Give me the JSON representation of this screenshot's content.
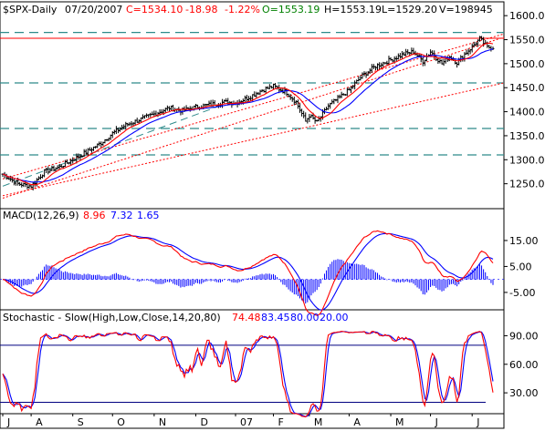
{
  "header": {
    "symbol": "$SPX-Daily",
    "date": "07/20/2007",
    "close": "C=1534.10",
    "change": "-18.98",
    "change_pct": "-1.22%",
    "open": "O=1553.19",
    "high": "H=1553.19",
    "low": "L=1529.20",
    "volume": "V=198945"
  },
  "colors": {
    "background": "#ffffff",
    "frame": "#000000",
    "price_bars": "#000000",
    "red": "#ff0000",
    "blue": "#0000ff",
    "green": "#008000",
    "teal_dashed": "#2e8b8b"
  },
  "chart_data": [
    {
      "type": "line",
      "name": "price",
      "ylim": [
        1200,
        1625
      ],
      "y_ticks": [
        "1600.00",
        "1550.00",
        "1500.00",
        "1450.00",
        "1400.00",
        "1350.00",
        "1300.00",
        "1250.00"
      ],
      "y_tick_values": [
        1600,
        1550,
        1500,
        1450,
        1400,
        1350,
        1300,
        1250
      ],
      "horizontal_levels": [
        1565,
        1553,
        1460,
        1365,
        1310
      ],
      "trend_channel": [
        [
          1220,
          1555
        ],
        [
          1260,
          1562
        ],
        [
          1225,
          1460
        ]
      ],
      "x_labels": [
        "J",
        "A",
        "S",
        "O",
        "N",
        "D",
        "07",
        "F",
        "M",
        "A",
        "M",
        "J",
        "J"
      ],
      "x_label_index": [
        0,
        15,
        37,
        58,
        80,
        102,
        123,
        143,
        162,
        183,
        205,
        226,
        248
      ],
      "price_anchors": [
        [
          0,
          1270
        ],
        [
          8,
          1250
        ],
        [
          15,
          1245
        ],
        [
          22,
          1275
        ],
        [
          30,
          1285
        ],
        [
          37,
          1300
        ],
        [
          45,
          1318
        ],
        [
          52,
          1335
        ],
        [
          58,
          1355
        ],
        [
          65,
          1372
        ],
        [
          72,
          1383
        ],
        [
          80,
          1395
        ],
        [
          88,
          1408
        ],
        [
          95,
          1402
        ],
        [
          102,
          1410
        ],
        [
          110,
          1415
        ],
        [
          117,
          1420
        ],
        [
          123,
          1418
        ],
        [
          130,
          1430
        ],
        [
          137,
          1445
        ],
        [
          143,
          1453
        ],
        [
          150,
          1440
        ],
        [
          155,
          1420
        ],
        [
          160,
          1380
        ],
        [
          162,
          1392
        ],
        [
          166,
          1378
        ],
        [
          172,
          1412
        ],
        [
          178,
          1430
        ],
        [
          183,
          1445
        ],
        [
          190,
          1475
        ],
        [
          197,
          1495
        ],
        [
          205,
          1508
        ],
        [
          212,
          1520
        ],
        [
          217,
          1525
        ],
        [
          222,
          1505
        ],
        [
          226,
          1525
        ],
        [
          232,
          1500
        ],
        [
          236,
          1515
        ],
        [
          240,
          1502
        ],
        [
          244,
          1520
        ],
        [
          248,
          1535
        ],
        [
          252,
          1552
        ],
        [
          256,
          1534
        ]
      ],
      "series": [
        {
          "name": "SMA short",
          "color": "#ff0000"
        },
        {
          "name": "SMA long",
          "color": "#0000ff"
        }
      ]
    },
    {
      "type": "line",
      "name": "MACD",
      "title": "MACD(12,26,9)",
      "values_label": [
        "8.96",
        "7.32",
        "1.65"
      ],
      "ylim": [
        -11,
        22
      ],
      "y_ticks": [
        "15.00",
        "5.00",
        "-5.00"
      ],
      "y_tick_values": [
        15,
        5,
        -5
      ],
      "series": [
        {
          "name": "macd",
          "color": "#ff0000"
        },
        {
          "name": "signal",
          "color": "#0000ff"
        },
        {
          "name": "histogram",
          "color": "#0000ff"
        }
      ]
    },
    {
      "type": "line",
      "name": "Stochastic",
      "title": "Stochastic - Slow(High,Low,Close,14,20,80)",
      "values_label": [
        "74.48",
        "83.45",
        "80.00",
        "20.00"
      ],
      "ylim": [
        10,
        100
      ],
      "y_ticks": [
        "90.00",
        "60.00",
        "30.00"
      ],
      "y_tick_values": [
        90,
        60,
        30
      ],
      "levels": [
        80,
        20
      ],
      "series": [
        {
          "name": "%K",
          "color": "#ff0000"
        },
        {
          "name": "%D",
          "color": "#0000ff"
        }
      ]
    }
  ]
}
